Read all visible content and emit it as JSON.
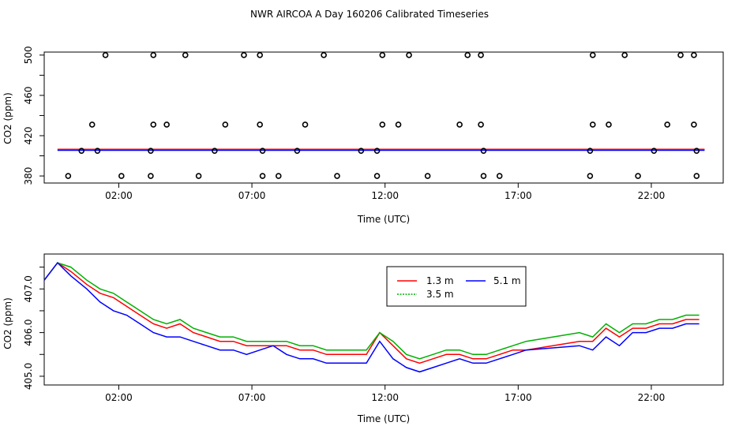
{
  "title": "NWR AIRCOA A  Day 160206  Calibrated Timeseries",
  "colors": {
    "s13": "#ff0000",
    "s35": "#00b000",
    "s51": "#0000ff",
    "axis": "#000000"
  },
  "chart_data": [
    {
      "type": "scatter+line",
      "xlabel": "Time (UTC)",
      "ylabel": "CO2 (ppm)",
      "xlim": [
        -0.8,
        24.7
      ],
      "ylim": [
        373,
        503
      ],
      "xticks": [
        2,
        7,
        12,
        17,
        22
      ],
      "xtick_labels": [
        "02:00",
        "07:00",
        "12:00",
        "17:00",
        "22:00"
      ],
      "yticks": [
        380,
        420,
        460,
        500
      ],
      "ytick_labels": [
        "380",
        "420",
        "460",
        "500"
      ],
      "ticks_minor_y": [
        400,
        440,
        480
      ],
      "points": [
        [
          1.5,
          500
        ],
        [
          3.3,
          500
        ],
        [
          4.5,
          500
        ],
        [
          6.7,
          500
        ],
        [
          7.3,
          500
        ],
        [
          9.7,
          500
        ],
        [
          11.9,
          500
        ],
        [
          12.9,
          500
        ],
        [
          15.1,
          500
        ],
        [
          15.6,
          500
        ],
        [
          19.8,
          500
        ],
        [
          21.0,
          500
        ],
        [
          23.1,
          500
        ],
        [
          23.6,
          500
        ],
        [
          1.0,
          431
        ],
        [
          3.3,
          431
        ],
        [
          3.8,
          431
        ],
        [
          6.0,
          431
        ],
        [
          7.3,
          431
        ],
        [
          9.0,
          431
        ],
        [
          11.9,
          431
        ],
        [
          12.5,
          431
        ],
        [
          14.8,
          431
        ],
        [
          15.6,
          431
        ],
        [
          19.8,
          431
        ],
        [
          20.4,
          431
        ],
        [
          22.6,
          431
        ],
        [
          23.6,
          431
        ],
        [
          0.6,
          405
        ],
        [
          1.2,
          405
        ],
        [
          3.2,
          405
        ],
        [
          5.6,
          405
        ],
        [
          7.4,
          405
        ],
        [
          8.7,
          405
        ],
        [
          11.1,
          405
        ],
        [
          11.7,
          405
        ],
        [
          15.7,
          405
        ],
        [
          19.7,
          405
        ],
        [
          22.1,
          405
        ],
        [
          23.7,
          405
        ],
        [
          0.1,
          380
        ],
        [
          2.1,
          380
        ],
        [
          3.2,
          380
        ],
        [
          5.0,
          380
        ],
        [
          7.4,
          380
        ],
        [
          8.0,
          380
        ],
        [
          10.2,
          380
        ],
        [
          11.7,
          380
        ],
        [
          13.6,
          380
        ],
        [
          15.7,
          380
        ],
        [
          16.3,
          380
        ],
        [
          19.7,
          380
        ],
        [
          21.5,
          380
        ],
        [
          23.7,
          380
        ]
      ],
      "series": [
        {
          "name": "1.3 m",
          "color": "#ff0000",
          "level": 406
        },
        {
          "name": "3.5 m",
          "color": "#00b000",
          "level": 406
        },
        {
          "name": "5.1 m",
          "color": "#0000ff",
          "level": 406
        }
      ]
    },
    {
      "type": "line",
      "xlabel": "Time (UTC)",
      "ylabel": "CO2 (ppm)",
      "xlim": [
        -0.8,
        24.7
      ],
      "ylim": [
        404.8,
        407.8
      ],
      "xticks": [
        2,
        7,
        12,
        17,
        22
      ],
      "xtick_labels": [
        "02:00",
        "07:00",
        "12:00",
        "17:00",
        "22:00"
      ],
      "yticks": [
        405.0,
        406.0,
        407.0
      ],
      "ytick_labels": [
        "405.0",
        "406.0",
        "407.0"
      ],
      "ticks_minor_y": [
        405.5,
        406.5,
        407.5
      ],
      "legend": {
        "position": "top-center",
        "entries": [
          "1.3 m",
          "5.1 m",
          "3.5 m"
        ]
      },
      "series": [
        {
          "name": "1.3 m",
          "color": "#ff0000",
          "x": [
            -0.8,
            -0.3,
            0.2,
            0.8,
            1.3,
            1.8,
            2.3,
            2.8,
            3.3,
            3.8,
            4.3,
            4.8,
            5.3,
            5.8,
            6.3,
            6.8,
            7.3,
            7.8,
            8.3,
            8.8,
            9.3,
            9.8,
            10.3,
            10.8,
            11.3,
            11.8,
            12.3,
            12.8,
            13.3,
            13.8,
            14.3,
            14.8,
            15.3,
            15.8,
            16.3,
            16.8,
            17.3,
            19.3,
            19.8,
            20.3,
            20.8,
            21.3,
            21.8,
            22.3,
            22.8,
            23.3,
            23.8
          ],
          "y": [
            407.2,
            407.6,
            407.4,
            407.1,
            406.9,
            406.8,
            406.6,
            406.4,
            406.2,
            406.1,
            406.2,
            406.0,
            405.9,
            405.8,
            405.8,
            405.7,
            405.7,
            405.7,
            405.7,
            405.6,
            405.6,
            405.5,
            405.5,
            405.5,
            405.5,
            406.0,
            405.7,
            405.4,
            405.3,
            405.4,
            405.5,
            405.5,
            405.4,
            405.4,
            405.5,
            405.6,
            405.6,
            405.8,
            405.8,
            406.1,
            405.9,
            406.1,
            406.1,
            406.2,
            406.2,
            406.3,
            406.3
          ]
        },
        {
          "name": "3.5 m",
          "color": "#00b000",
          "x": [
            -0.8,
            -0.3,
            0.2,
            0.8,
            1.3,
            1.8,
            2.3,
            2.8,
            3.3,
            3.8,
            4.3,
            4.8,
            5.3,
            5.8,
            6.3,
            6.8,
            7.3,
            7.8,
            8.3,
            8.8,
            9.3,
            9.8,
            10.3,
            10.8,
            11.3,
            11.8,
            12.3,
            12.8,
            13.3,
            13.8,
            14.3,
            14.8,
            15.3,
            15.8,
            16.3,
            16.8,
            17.3,
            19.3,
            19.8,
            20.3,
            20.8,
            21.3,
            21.8,
            22.3,
            22.8,
            23.3,
            23.8
          ],
          "y": [
            407.2,
            407.6,
            407.5,
            407.2,
            407.0,
            406.9,
            406.7,
            406.5,
            406.3,
            406.2,
            406.3,
            406.1,
            406.0,
            405.9,
            405.9,
            405.8,
            405.8,
            405.8,
            405.8,
            405.7,
            405.7,
            405.6,
            405.6,
            405.6,
            405.6,
            406.0,
            405.8,
            405.5,
            405.4,
            405.5,
            405.6,
            405.6,
            405.5,
            405.5,
            405.6,
            405.7,
            405.8,
            406.0,
            405.9,
            406.2,
            406.0,
            406.2,
            406.2,
            406.3,
            406.3,
            406.4,
            406.4
          ]
        },
        {
          "name": "5.1 m",
          "color": "#0000ff",
          "x": [
            -0.8,
            -0.3,
            0.2,
            0.8,
            1.3,
            1.8,
            2.3,
            2.8,
            3.3,
            3.8,
            4.3,
            4.8,
            5.3,
            5.8,
            6.3,
            6.8,
            7.3,
            7.8,
            8.3,
            8.8,
            9.3,
            9.8,
            10.3,
            10.8,
            11.3,
            11.8,
            12.3,
            12.8,
            13.3,
            13.8,
            14.3,
            14.8,
            15.3,
            15.8,
            16.3,
            16.8,
            17.3,
            19.3,
            19.8,
            20.3,
            20.8,
            21.3,
            21.8,
            22.3,
            22.8,
            23.3,
            23.8
          ],
          "y": [
            407.2,
            407.6,
            407.3,
            407.0,
            406.7,
            406.5,
            406.4,
            406.2,
            406.0,
            405.9,
            405.9,
            405.8,
            405.7,
            405.6,
            405.6,
            405.5,
            405.6,
            405.7,
            405.5,
            405.4,
            405.4,
            405.3,
            405.3,
            405.3,
            405.3,
            405.8,
            405.4,
            405.2,
            405.1,
            405.2,
            405.3,
            405.4,
            405.3,
            405.3,
            405.4,
            405.5,
            405.6,
            405.7,
            405.6,
            405.9,
            405.7,
            406.0,
            406.0,
            406.1,
            406.1,
            406.2,
            406.2
          ]
        }
      ]
    }
  ]
}
